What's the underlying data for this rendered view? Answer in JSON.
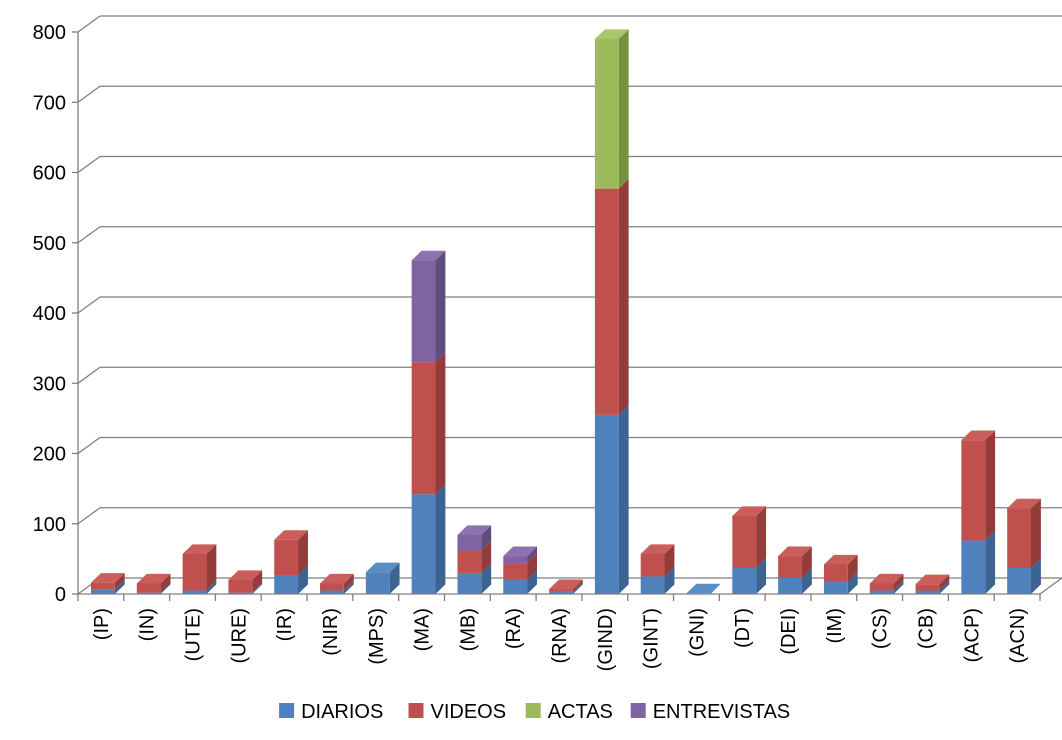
{
  "chart_data": {
    "type": "bar",
    "stacked": true,
    "three_d": true,
    "categories": [
      "(IP)",
      "(IN)",
      "(UTE)",
      "(URE)",
      "(IR)",
      "(NIR)",
      "(MPS)",
      "(MA)",
      "(MB)",
      "(RA)",
      "(RNA)",
      "(GIND)",
      "(GINT)",
      "(GNI)",
      "(DT)",
      "(DEI)",
      "(IM)",
      "(CS)",
      "(CB)",
      "(ACP)",
      "(ACN)"
    ],
    "series": [
      {
        "name": "DIARIOS",
        "color": "#4F81BD",
        "side": "#3B6493",
        "top": "#5C8CC4",
        "values": [
          6,
          2,
          5,
          2,
          27,
          5,
          31,
          142,
          30,
          20,
          3,
          255,
          25,
          1,
          37,
          23,
          17,
          5,
          5,
          76,
          37
        ]
      },
      {
        "name": "VIDEOS",
        "color": "#C0504D",
        "side": "#943C3A",
        "top": "#C95E5B",
        "values": [
          10,
          13,
          52,
          18,
          50,
          10,
          0,
          188,
          32,
          24,
          4,
          322,
          32,
          0,
          74,
          31,
          25,
          10,
          9,
          143,
          85
        ]
      },
      {
        "name": "ACTAS",
        "color": "#9BBB59",
        "side": "#77923F",
        "top": "#A9C66C",
        "values": [
          0,
          0,
          0,
          0,
          0,
          0,
          0,
          0,
          0,
          0,
          0,
          213,
          0,
          0,
          0,
          0,
          0,
          0,
          0,
          0,
          0
        ]
      },
      {
        "name": "ENTREVISTAS",
        "color": "#8064A2",
        "side": "#624C7E",
        "top": "#8D72AF",
        "values": [
          0,
          0,
          0,
          0,
          0,
          0,
          0,
          145,
          22,
          10,
          0,
          0,
          0,
          0,
          0,
          0,
          0,
          0,
          0,
          0,
          0
        ]
      }
    ],
    "y_ticks": [
      "0",
      "100",
      "200",
      "300",
      "400",
      "500",
      "600",
      "700",
      "800"
    ],
    "ylim": [
      0,
      800
    ],
    "grid": true,
    "legend_position": "bottom"
  }
}
